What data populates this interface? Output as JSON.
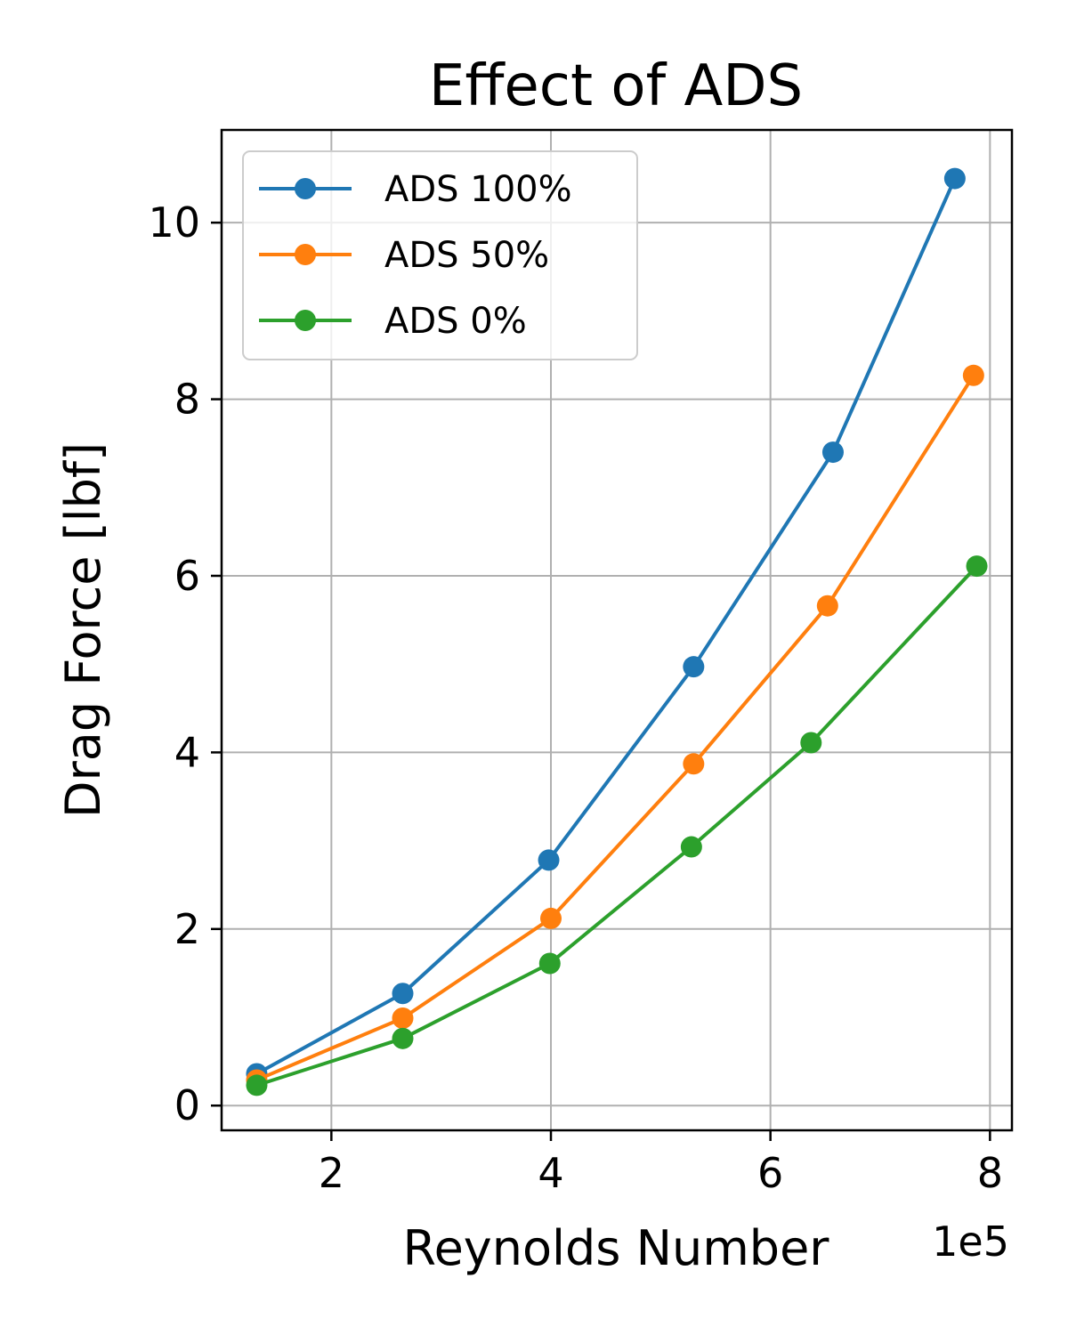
{
  "chart_data": {
    "type": "line",
    "title": "Effect of ADS",
    "xlabel": "Reynolds Number",
    "ylabel": "Drag Force [lbf]",
    "x_offset_label": "1e5",
    "xlim": [
      1.0,
      8.2
    ],
    "ylim": [
      -0.28,
      11.05
    ],
    "xticks": [
      2,
      4,
      6,
      8
    ],
    "yticks": [
      0,
      2,
      4,
      6,
      8,
      10
    ],
    "grid": true,
    "legend_position": "top-left",
    "series": [
      {
        "name": "ADS 100%",
        "color": "#1f77b4",
        "x": [
          1.32,
          2.65,
          3.98,
          5.3,
          6.57,
          7.68
        ],
        "y": [
          0.36,
          1.27,
          2.78,
          4.97,
          7.4,
          10.5
        ]
      },
      {
        "name": "ADS 50%",
        "color": "#ff7f0e",
        "x": [
          1.32,
          2.65,
          4.0,
          5.3,
          6.52,
          7.85
        ],
        "y": [
          0.29,
          0.99,
          2.12,
          3.87,
          5.66,
          8.27
        ]
      },
      {
        "name": "ADS 0%",
        "color": "#2ca02c",
        "x": [
          1.32,
          2.65,
          3.99,
          5.28,
          6.37,
          7.88
        ],
        "y": [
          0.23,
          0.76,
          1.61,
          2.93,
          4.11,
          6.11
        ]
      }
    ]
  }
}
